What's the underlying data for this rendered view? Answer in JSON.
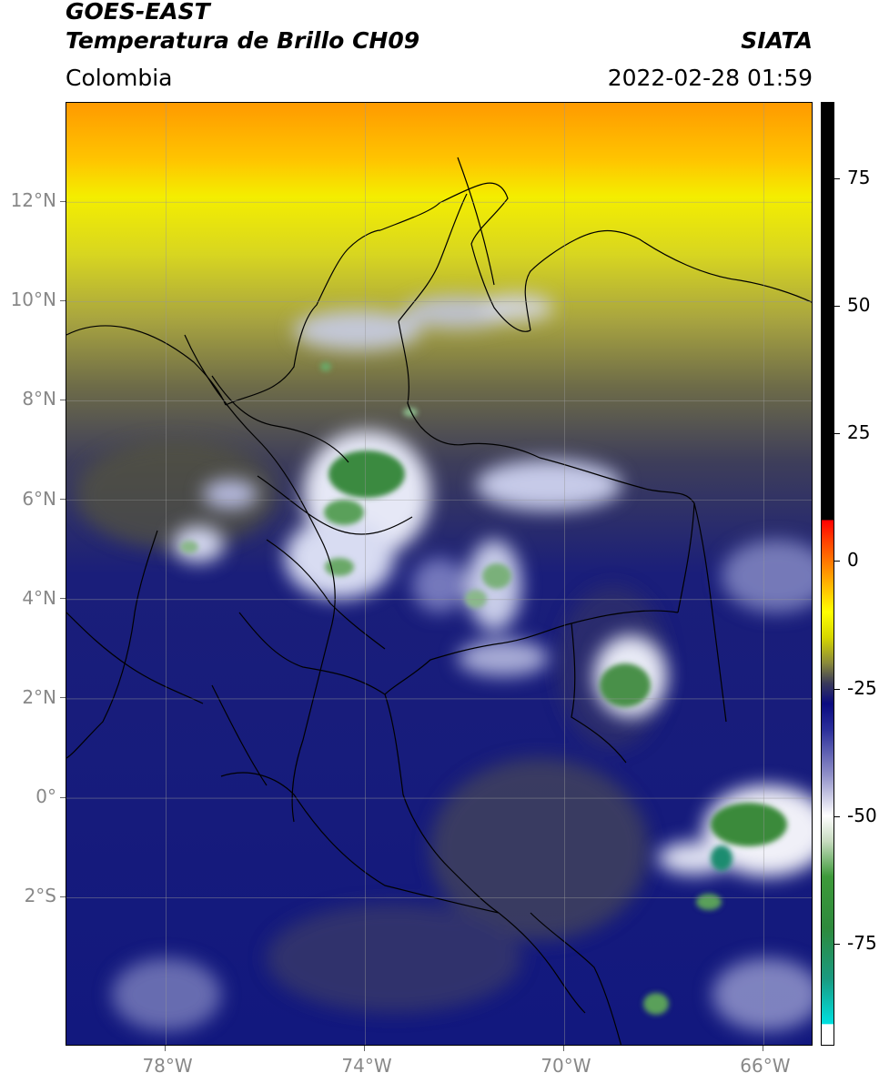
{
  "header": {
    "satellite": "GOES-EAST",
    "product": "Temperatura de Brillo CH09",
    "region": "Colombia",
    "agency": "SIATA",
    "datetime": "2022-02-28 01:59"
  },
  "map": {
    "lon_range": [
      -80,
      -65
    ],
    "lat_range": [
      -5,
      14
    ],
    "lon_ticks": [
      {
        "value": -78,
        "label": "78°W"
      },
      {
        "value": -74,
        "label": "74°W"
      },
      {
        "value": -70,
        "label": "70°W"
      },
      {
        "value": -66,
        "label": "66°W"
      }
    ],
    "lat_ticks": [
      {
        "value": 12,
        "label": "12°N"
      },
      {
        "value": 10,
        "label": "10°N"
      },
      {
        "value": 8,
        "label": "8°N"
      },
      {
        "value": 6,
        "label": "6°N"
      },
      {
        "value": 4,
        "label": "4°N"
      },
      {
        "value": 2,
        "label": "2°N"
      },
      {
        "value": 0,
        "label": "0°"
      },
      {
        "value": -2,
        "label": "2°S"
      }
    ],
    "gridlines": true,
    "colors": {
      "cold_cloud_green": "#3a8a3a",
      "cloud_white": "#e8eaf4",
      "cloud_navy": "#141c8a",
      "dry_olive": "#5a5a3a",
      "dry_yellow": "#f2f000",
      "dry_orange": "#ff8c00"
    }
  },
  "colorbar": {
    "range": [
      -95,
      90
    ],
    "ticks": [
      {
        "value": 75,
        "label": "75"
      },
      {
        "value": 50,
        "label": "50"
      },
      {
        "value": 25,
        "label": "25"
      },
      {
        "value": 0,
        "label": "0"
      },
      {
        "value": -25,
        "label": "-25"
      },
      {
        "value": -50,
        "label": "-50"
      },
      {
        "value": -75,
        "label": "-75"
      }
    ],
    "stops": [
      {
        "value": -95,
        "color": "#ffffff"
      },
      {
        "value": -91,
        "color": "#ffffff"
      },
      {
        "value": -90.9,
        "color": "#00e0e0"
      },
      {
        "value": -82,
        "color": "#1a9a80"
      },
      {
        "value": -72,
        "color": "#2e8a3c"
      },
      {
        "value": -62,
        "color": "#3d9a3a"
      },
      {
        "value": -55,
        "color": "#c8dcc0"
      },
      {
        "value": -50,
        "color": "#ffffff"
      },
      {
        "value": -42,
        "color": "#9090c8"
      },
      {
        "value": -33,
        "color": "#2a2e9a"
      },
      {
        "value": -28,
        "color": "#0a0a80"
      },
      {
        "value": -24,
        "color": "#3a3a5a"
      },
      {
        "value": -20,
        "color": "#8a8a3a"
      },
      {
        "value": -15,
        "color": "#d6d600"
      },
      {
        "value": -10,
        "color": "#ffff00"
      },
      {
        "value": -3,
        "color": "#ffa000"
      },
      {
        "value": 4,
        "color": "#ff4000"
      },
      {
        "value": 8,
        "color": "#ff0000"
      },
      {
        "value": 8.1,
        "color": "#000000"
      },
      {
        "value": 90,
        "color": "#000000"
      }
    ]
  }
}
